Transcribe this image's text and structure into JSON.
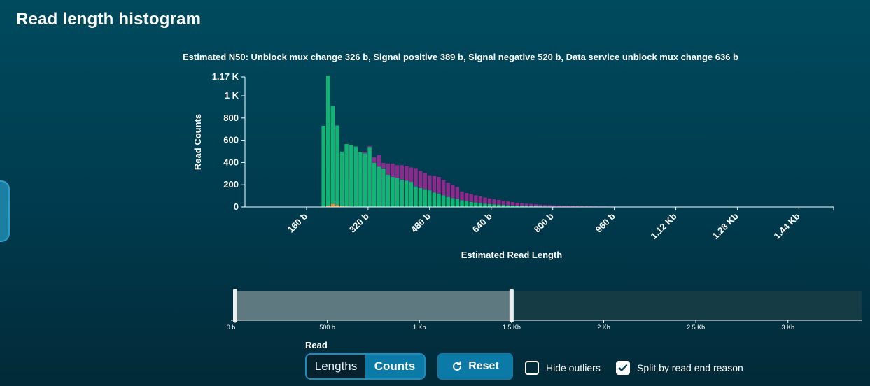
{
  "page": {
    "title": "Read length histogram"
  },
  "colors": {
    "signal_positive": "#11b573",
    "signal_negative": "#8c2b8c",
    "unblock_mux_change": "#e3872a",
    "background": "#003f52",
    "brush_selected": "#5e7a80",
    "brush_track": "#153c45"
  },
  "chart_data": {
    "type": "bar",
    "subtitle": "Estimated N50: Unblock mux change 326 b, Signal positive 389 b, Signal negative 520 b, Data service unblock mux change 636 b",
    "xlabel": "Estimated Read Length",
    "ylabel": "Read Counts",
    "xlim": [
      0,
      1530
    ],
    "ylim": [
      0,
      1170
    ],
    "x_ticks": [
      160,
      320,
      480,
      640,
      800,
      960,
      1120,
      1280,
      1440
    ],
    "x_tick_labels": [
      "160 b",
      "320 b",
      "480 b",
      "640 b",
      "800 b",
      "960 b",
      "1.12 Kb",
      "1.28 Kb",
      "1.44 Kb"
    ],
    "y_ticks": [
      0,
      200,
      400,
      600,
      800,
      1000,
      1170
    ],
    "y_tick_labels": [
      "0",
      "200",
      "400",
      "600",
      "800",
      "1 K",
      "1.17 K"
    ],
    "bin_width": 12,
    "bin_starts": [
      198,
      210,
      222,
      234,
      246,
      258,
      270,
      282,
      294,
      306,
      318,
      330,
      342,
      354,
      366,
      378,
      390,
      402,
      414,
      426,
      438,
      450,
      462,
      474,
      486,
      498,
      510,
      522,
      534,
      546,
      558,
      570,
      582,
      594,
      606,
      618,
      630,
      642,
      654,
      666,
      678,
      690,
      702,
      714,
      726,
      738,
      750,
      762,
      774,
      786,
      798,
      810,
      822,
      834,
      846,
      858,
      870,
      882,
      894,
      906,
      918,
      930,
      942,
      954,
      966,
      978,
      990,
      1002,
      1014,
      1026,
      1038,
      1050,
      1062,
      1074,
      1086,
      1098,
      1110,
      1122,
      1134,
      1146,
      1158,
      1170
    ],
    "series": [
      {
        "name": "Signal positive",
        "values": [
          725,
          1170,
          880,
          715,
          490,
          560,
          550,
          540,
          490,
          480,
          535,
          395,
          360,
          345,
          290,
          270,
          260,
          245,
          235,
          225,
          185,
          170,
          160,
          150,
          130,
          120,
          105,
          90,
          80,
          70,
          60,
          50,
          45,
          40,
          35,
          30,
          27,
          24,
          21,
          18,
          15,
          13,
          11,
          10,
          9,
          8,
          7,
          6,
          5,
          5,
          4,
          4,
          3,
          3,
          3,
          3,
          2,
          2,
          2,
          2,
          2,
          2,
          1,
          1,
          1,
          1,
          1,
          1,
          1,
          1,
          1,
          1,
          1,
          1,
          1,
          1,
          1,
          1,
          1,
          1,
          1,
          1
        ]
      },
      {
        "name": "Signal negative",
        "values": [
          0,
          0,
          0,
          0,
          0,
          0,
          0,
          0,
          0,
          12,
          10,
          50,
          105,
          50,
          100,
          120,
          115,
          130,
          135,
          130,
          165,
          155,
          145,
          135,
          150,
          150,
          140,
          130,
          120,
          110,
          80,
          75,
          70,
          65,
          60,
          55,
          50,
          46,
          42,
          38,
          34,
          30,
          27,
          24,
          21,
          19,
          17,
          15,
          13,
          12,
          10,
          9,
          8,
          7,
          6,
          6,
          5,
          5,
          4,
          4,
          3,
          3,
          3,
          3,
          2,
          2,
          2,
          2,
          2,
          2,
          2,
          1,
          1,
          1,
          1,
          1,
          1,
          1,
          1,
          1,
          1,
          1
        ]
      },
      {
        "name": "Unblock mux change",
        "values": [
          5,
          10,
          28,
          18,
          8,
          6,
          5,
          4,
          3,
          3,
          3,
          2,
          2,
          2,
          1,
          1,
          1,
          1,
          1,
          1,
          0,
          0,
          0,
          0,
          0,
          0,
          0,
          0,
          0,
          0,
          0,
          0,
          0,
          0,
          0,
          0,
          0,
          0,
          0,
          0,
          0,
          0,
          0,
          0,
          0,
          0,
          0,
          0,
          0,
          0,
          0,
          0,
          0,
          0,
          0,
          0,
          0,
          0,
          0,
          0,
          0,
          0,
          0,
          0,
          0,
          0,
          0,
          0,
          0,
          0,
          0,
          0,
          0,
          0,
          0,
          0,
          0,
          0,
          0,
          0,
          0,
          0
        ]
      }
    ]
  },
  "range_selector": {
    "tick_labels": [
      "0 b",
      "500 b",
      "1 Kb",
      "1.5 Kb",
      "2 Kb",
      "2.5 Kb",
      "3 Kb"
    ],
    "tick_values": [
      0,
      500,
      1000,
      1500,
      2000,
      2500,
      3000
    ],
    "max_value": 3400,
    "selection": [
      0,
      1500
    ]
  },
  "controls": {
    "mode_label": "Read",
    "lengths_label": "Lengths",
    "counts_label": "Counts",
    "reset_label": "Reset",
    "hide_outliers_label": "Hide outliers",
    "hide_outliers_checked": false,
    "split_label": "Split by read end reason",
    "split_checked": true
  }
}
